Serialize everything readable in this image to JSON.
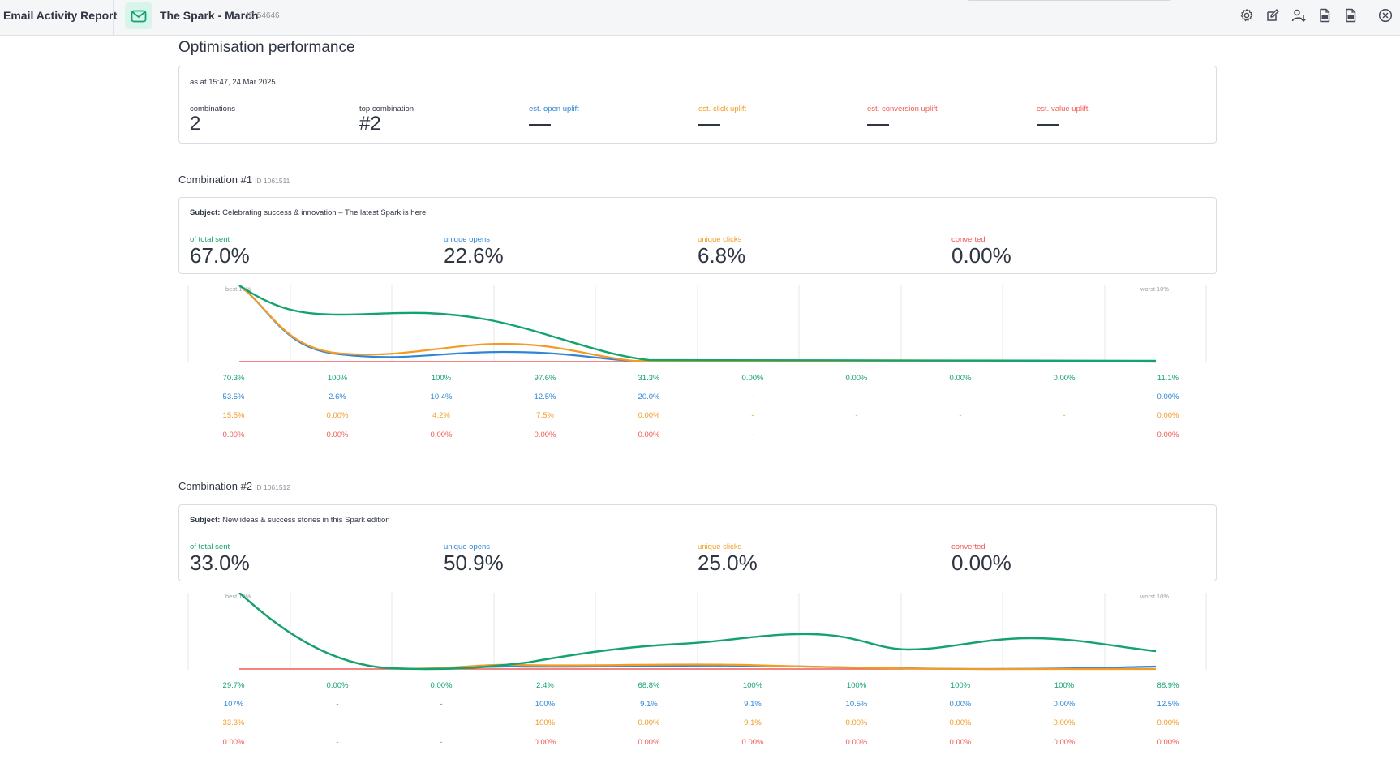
{
  "topbar": {
    "app_title": "Email Activity Report",
    "doc_title": "The Spark - March",
    "doc_id": "ID 54646",
    "icons": [
      "settings-icon",
      "edit-icon",
      "user-download-icon",
      "pdf-icon",
      "csv-icon",
      "close-icon"
    ]
  },
  "optimisation": {
    "title": "Optimisation performance",
    "as_at": "as at 15:47, 24 Mar 2025",
    "combinations_label": "combinations",
    "combinations_value": "2",
    "top_label": "top combination",
    "top_value": "#2",
    "open_label": "est. open uplift",
    "click_label": "est. click uplift",
    "conversion_label": "est. conversion uplift",
    "value_label": "est. value uplift"
  },
  "colors": {
    "green": "#13a36e",
    "blue": "#2f86d6",
    "orange": "#f29b26",
    "red": "#f25a55"
  },
  "combinations": [
    {
      "title": "Combination #1",
      "id": "ID 1061511",
      "subject_label": "Subject:",
      "subject": "Celebrating success & innovation – The latest Spark is here",
      "sent_label": "of total sent",
      "sent": "67.0%",
      "opens_label": "unique opens",
      "opens": "22.6%",
      "clicks_label": "unique clicks",
      "clicks": "6.8%",
      "converted_label": "converted",
      "converted": "0.00%",
      "best_label": "best 10%",
      "worst_label": "worst 10%",
      "rows": {
        "sent": [
          "70.3%",
          "100%",
          "100%",
          "97.6%",
          "31.3%",
          "0.00%",
          "0.00%",
          "0.00%",
          "0.00%",
          "11.1%"
        ],
        "opens": [
          "53.5%",
          "2.6%",
          "10.4%",
          "12.5%",
          "20.0%",
          "-",
          "-",
          "-",
          "-",
          "0.00%"
        ],
        "clicks": [
          "15.5%",
          "0.00%",
          "4.2%",
          "7.5%",
          "0.00%",
          "-",
          "-",
          "-",
          "-",
          "0.00%"
        ],
        "converted": [
          "0.00%",
          "0.00%",
          "0.00%",
          "0.00%",
          "0.00%",
          "-",
          "-",
          "-",
          "-",
          "0.00%"
        ]
      }
    },
    {
      "title": "Combination #2",
      "id": "ID 1061512",
      "subject_label": "Subject:",
      "subject": "New ideas & success stories in this Spark edition",
      "sent_label": "of total sent",
      "sent": "33.0%",
      "opens_label": "unique opens",
      "opens": "50.9%",
      "clicks_label": "unique clicks",
      "clicks": "25.0%",
      "converted_label": "converted",
      "converted": "0.00%",
      "best_label": "best 10%",
      "worst_label": "worst 10%",
      "rows": {
        "sent": [
          "29.7%",
          "0.00%",
          "0.00%",
          "2.4%",
          "68.8%",
          "100%",
          "100%",
          "100%",
          "100%",
          "88.9%"
        ],
        "opens": [
          "107%",
          "-",
          "-",
          "100%",
          "9.1%",
          "9.1%",
          "10.5%",
          "0.00%",
          "0.00%",
          "12.5%"
        ],
        "clicks": [
          "33.3%",
          "-",
          "-",
          "100%",
          "0.00%",
          "9.1%",
          "0.00%",
          "0.00%",
          "0.00%",
          "0.00%"
        ],
        "converted": [
          "0.00%",
          "-",
          "-",
          "0.00%",
          "0.00%",
          "0.00%",
          "0.00%",
          "0.00%",
          "0.00%",
          "0.00%"
        ]
      }
    }
  ]
}
